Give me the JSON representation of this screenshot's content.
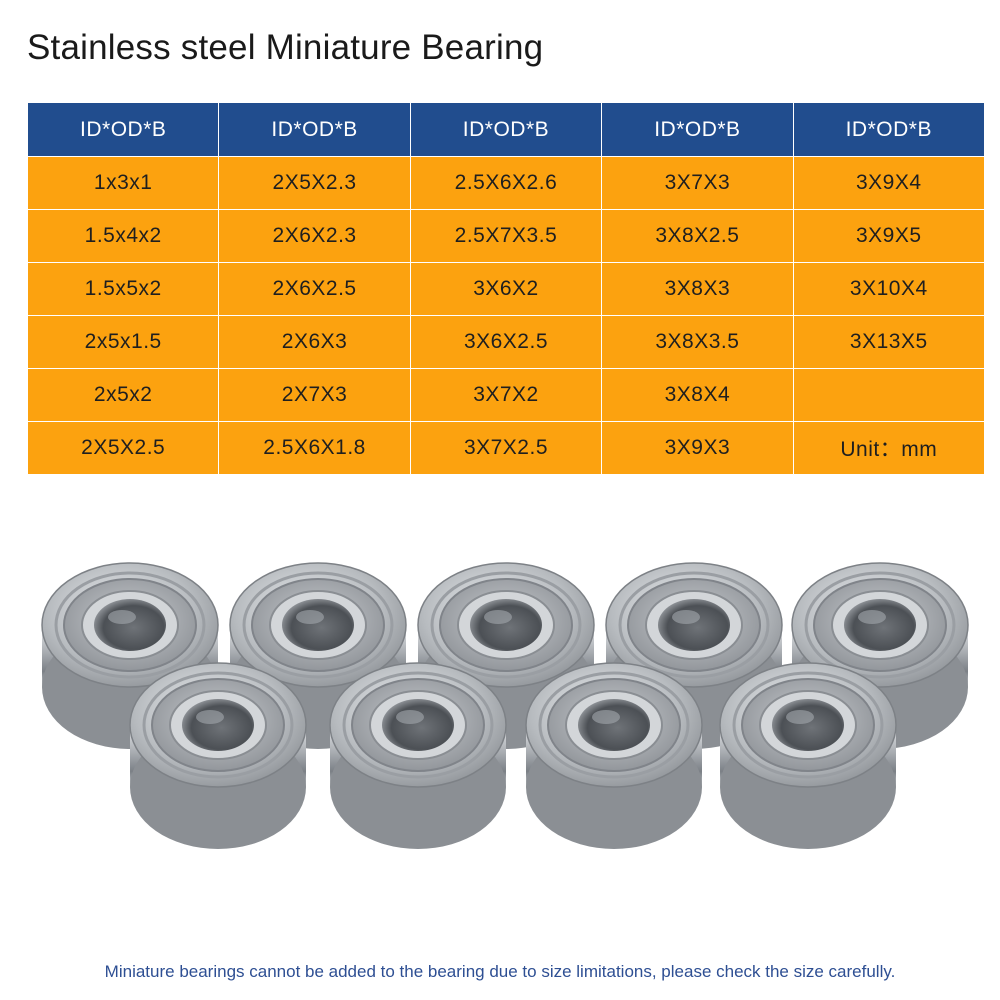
{
  "title": "Stainless steel Miniature Bearing",
  "table": {
    "headers": [
      "ID*OD*B",
      "ID*OD*B",
      "ID*OD*B",
      "ID*OD*B",
      "ID*OD*B"
    ],
    "rows": [
      [
        "1x3x1",
        "2X5X2.3",
        "2.5X6X2.6",
        "3X7X3",
        "3X9X4"
      ],
      [
        "1.5x4x2",
        "2X6X2.3",
        "2.5X7X3.5",
        "3X8X2.5",
        "3X9X5"
      ],
      [
        "1.5x5x2",
        "2X6X2.5",
        "3X6X2",
        "3X8X3",
        "3X10X4"
      ],
      [
        "2x5x1.5",
        "2X6X3",
        "3X6X2.5",
        "3X8X3.5",
        "3X13X5"
      ],
      [
        "2x5x2",
        "2X7X3",
        "3X7X2",
        "3X8X4",
        ""
      ],
      [
        "2X5X2.5",
        "2.5X6X1.8",
        "3X7X2.5",
        "3X9X3",
        "Unit：mm"
      ]
    ]
  },
  "note": "Miniature bearings cannot be added to the bearing due to size limitations, please check the size carefully.",
  "colors": {
    "header_bg": "#214d8e",
    "cell_bg": "#fca20f",
    "note_text": "#2e4f93"
  }
}
